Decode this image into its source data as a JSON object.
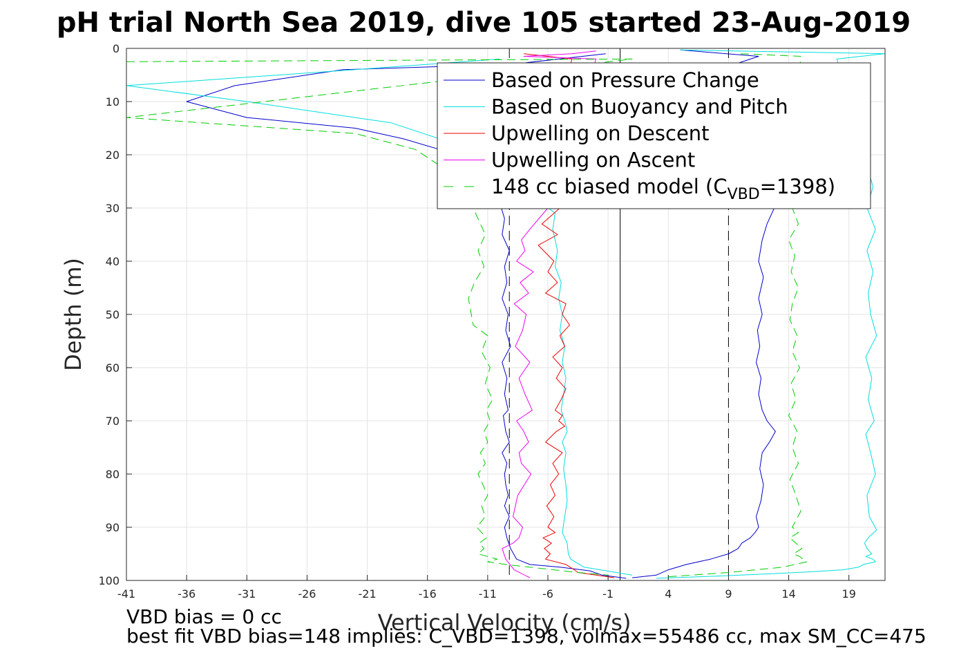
{
  "chart_data": {
    "type": "line",
    "title": "pH trial North Sea 2019, dive 105 started 23-Aug-2019",
    "xlabel": "Vertical Velocity (cm/s)",
    "ylabel": "Depth (m)",
    "xlim": [
      -41,
      22
    ],
    "ylim": [
      0,
      100
    ],
    "y_reversed": true,
    "grid": true,
    "xticks": [
      -41,
      -36,
      -31,
      -26,
      -21,
      -16,
      -11,
      -6,
      -1,
      4,
      9,
      14,
      19
    ],
    "yticks": [
      0,
      10,
      20,
      30,
      40,
      50,
      60,
      70,
      80,
      90,
      100
    ],
    "legend_position": "top-right",
    "reference_lines": [
      {
        "x": -9.2,
        "style": "dashed",
        "color": "#000000"
      },
      {
        "x": 0,
        "style": "solid",
        "color": "#000000"
      },
      {
        "x": 9.0,
        "style": "dashed",
        "color": "#000000"
      }
    ],
    "series": [
      {
        "name": "Based on Pressure Change",
        "color": "#0000cc",
        "style": "solid",
        "descent": {
          "x": [
            -1.2,
            -9,
            -23,
            -32,
            -36,
            -31,
            -22,
            -18,
            -15,
            -13,
            -11,
            -10,
            -9.6,
            -9.8,
            -9.2,
            -9.6,
            -9.4,
            -9.8,
            -9.3,
            -9.5,
            -9.1,
            -9.8,
            -9.4,
            -9.6,
            -9.3,
            -9.7,
            -9.5,
            -9.2,
            -9.8,
            -9.4,
            -9.6,
            -9.5,
            -9.3,
            -9.6,
            -9.2,
            -9.6,
            -9.4,
            -9.1,
            -8.6,
            -7.5,
            -5.0,
            -2.5,
            -1.5,
            0.5
          ],
          "y": [
            1,
            3,
            4,
            7,
            10,
            13,
            15,
            17,
            19,
            22,
            26,
            29,
            32,
            35,
            38,
            41,
            44,
            47,
            50,
            53,
            56,
            59,
            62,
            65,
            68,
            69,
            72,
            74,
            76,
            78,
            80,
            82,
            84,
            86,
            88,
            90,
            92,
            94,
            96,
            97,
            97.5,
            98.2,
            99,
            99.6
          ]
        },
        "ascent": {
          "x": [
            5,
            11.5,
            9.5,
            10.8,
            12.5,
            12.8,
            12.2,
            11.8,
            11.5,
            11.9,
            11.5,
            11.8,
            11.4,
            11.6,
            11.3,
            11.7,
            11.5,
            11.8,
            12.2,
            12.9,
            12.4,
            11.8,
            11.6,
            11.9,
            11.7,
            11.3,
            11.5,
            11.2,
            10.8,
            10.1,
            9.8,
            9.0,
            7.5,
            5.5,
            4.0,
            3.0,
            1.0
          ],
          "y": [
            0.3,
            1.5,
            3,
            20,
            26,
            30,
            33,
            36,
            40,
            43,
            47,
            50,
            53,
            56,
            59,
            62,
            65,
            68,
            70,
            72,
            74,
            76,
            79,
            82,
            85,
            88,
            90,
            91,
            92,
            93,
            94,
            95,
            96,
            97,
            98,
            99,
            99.5
          ]
        }
      },
      {
        "name": "Based on Buoyancy and Pitch",
        "color": "#00dddd",
        "style": "solid",
        "descent": {
          "x": [
            -10,
            -22,
            -41,
            -31,
            -19,
            -15,
            -14,
            -13,
            -12,
            -10,
            -8,
            -6.5,
            -5.4,
            -5.6,
            -5.2,
            -5.4,
            -4.9,
            -5.1,
            -4.8,
            -5.0,
            -4.6,
            -4.8,
            -4.5,
            -4.7,
            -4.9,
            -4.6,
            -4.4,
            -4.8,
            -4.5,
            -4.7,
            -4.5,
            -4.4,
            -4.6,
            -4.8,
            -4.4,
            -4.3,
            -4.1,
            -3.0,
            1.0
          ],
          "y": [
            2,
            4,
            7,
            10,
            14,
            17,
            19,
            21,
            23,
            25,
            27,
            29,
            31,
            34,
            38,
            41,
            44,
            47,
            50,
            53,
            56,
            59,
            62,
            65,
            68,
            70,
            72,
            74,
            76,
            79,
            82,
            85,
            88,
            91,
            93,
            95,
            96,
            97.5,
            99
          ]
        },
        "ascent": {
          "x": [
            5,
            22,
            18,
            21,
            20.5,
            21.2,
            20.5,
            21,
            20.6,
            20.8,
            21.3,
            20.4,
            20.9,
            20.6,
            21.1,
            20.4,
            20.8,
            21.2,
            20.5,
            20.7,
            21.3,
            20.6,
            20.3,
            20.5,
            20.9,
            20.4,
            21.0,
            21.2,
            20.2,
            19.8,
            18.5,
            15.5,
            12.0,
            8.0,
            3.0
          ],
          "y": [
            0.3,
            1,
            2,
            26,
            30,
            34,
            38,
            42,
            46,
            50,
            54,
            58,
            62,
            66,
            70,
            72.5,
            76,
            80,
            84,
            88,
            90.5,
            92,
            93,
            94,
            95,
            95.5,
            96,
            96.5,
            97,
            97.5,
            98,
            98.4,
            98.8,
            99.2,
            99.6
          ]
        }
      },
      {
        "name": "Upwelling on Descent",
        "color": "#ee0000",
        "style": "solid",
        "descent": {
          "x": [
            -8,
            -4,
            -7,
            -5,
            -6.5,
            -5.2,
            -6.8,
            -5.5,
            -6.0,
            -5.2,
            -6.2,
            -4.5,
            -4.8,
            -4.2,
            -5.0,
            -4.6,
            -5.6,
            -4.8,
            -5.3,
            -4.5,
            -4.9,
            -5.4,
            -4.8,
            -5.1,
            -4.6,
            -5.3,
            -6.2,
            -4.8,
            -5.6,
            -5.1,
            -5.8,
            -5.4,
            -6.1,
            -5.5,
            -6.0,
            -5.4,
            -6.4,
            -5.7,
            -6.3,
            -5.8,
            -6.2,
            -4.5,
            -3.8,
            -3.5,
            -2.0,
            -0.5
          ],
          "y": [
            1,
            2,
            26,
            30,
            33,
            35,
            37,
            40,
            42,
            44,
            46,
            48,
            50,
            52,
            54,
            56,
            58,
            60,
            62,
            64,
            66,
            68,
            69,
            70,
            71,
            72,
            74,
            76,
            78,
            80,
            82,
            84,
            86,
            88,
            90,
            91,
            92,
            93,
            94,
            95,
            96,
            97,
            98,
            98.5,
            99,
            99.5
          ]
        }
      },
      {
        "name": "Upwelling on Ascent",
        "color": "#ee00ee",
        "style": "solid",
        "ascent": {
          "x": [
            -2,
            -4,
            -8,
            -2,
            -6,
            -7.5,
            -8.2,
            -7.9,
            -8.6,
            -7.2,
            -8.3,
            -7.6,
            -8.8,
            -7.8,
            -8.1,
            -8.7,
            -7.5,
            -8.4,
            -7.9,
            -7.3,
            -8.6,
            -8.0,
            -7.6,
            -8.4,
            -8.2,
            -7.4,
            -8.5,
            -8.9,
            -8.1,
            -8.4,
            -8.9,
            -9.8,
            -9.5,
            -8.8,
            -7.5
          ],
          "y": [
            0.5,
            1,
            1.5,
            2,
            30,
            34,
            36,
            38,
            40,
            42,
            44,
            46,
            48,
            50,
            53,
            56,
            59,
            62,
            65,
            68,
            70,
            72,
            74,
            76,
            78,
            80,
            84,
            88,
            90,
            92,
            93,
            94,
            96,
            98,
            99.5
          ]
        }
      },
      {
        "name": "148 cc biased model (C_VBD=1398)",
        "color": "#00cc00",
        "style": "dashed",
        "descent": {
          "x": [
            -41,
            1,
            -41,
            -22,
            -17,
            -15,
            -13,
            -11.5,
            -12,
            -11.2,
            -11.8,
            -11.3,
            -12.1,
            -12.6,
            -12.2,
            -11.0,
            -11.5,
            -10.8,
            -11.2,
            -10.6,
            -11.1,
            -10.8,
            -11.3,
            -11.0,
            -11.6,
            -11.2,
            -11.8,
            -11.4,
            -11.0,
            -11.5,
            -11.2,
            -11.9,
            -11.5,
            -11.1,
            -11.7,
            -11.3,
            -11.8,
            -10.2,
            -11.0,
            -9.5,
            -7.5,
            -5.5,
            -3.5,
            -1.0
          ],
          "y": [
            2.5,
            2,
            13,
            16,
            19,
            22,
            25,
            28,
            31,
            35,
            38,
            41,
            44,
            47,
            52,
            54,
            57,
            60,
            63,
            66,
            68,
            70,
            72,
            74,
            76,
            78,
            80,
            82,
            84,
            86,
            88,
            90,
            91,
            92,
            93,
            94,
            95,
            96,
            96.5,
            97,
            97.5,
            98,
            98.5,
            99
          ]
        },
        "ascent": {
          "x": [
            10,
            15,
            14.3,
            14.8,
            14.0,
            14.5,
            14.2,
            14.8,
            14.3,
            14.1,
            14.7,
            14.3,
            14.9,
            14.2,
            14.6,
            14.0,
            14.7,
            14.3,
            14.8,
            14.1,
            14.6,
            15.0,
            14.3,
            14.8,
            14.1,
            14.6,
            15.1,
            14.4,
            14.9,
            15.2,
            15.5,
            13.5,
            9.0,
            4.0
          ],
          "y": [
            1,
            1.5,
            30,
            33,
            36,
            39,
            42,
            45,
            48,
            51,
            54,
            57,
            60,
            63,
            66,
            69,
            72,
            75,
            78,
            81,
            84,
            87,
            90,
            91,
            92,
            93,
            94,
            95,
            95.5,
            96,
            96.5,
            97.5,
            98.5,
            99.3
          ]
        }
      }
    ],
    "legend": {
      "entries": [
        {
          "label": "Based on Pressure Change",
          "color": "#0000cc",
          "style": "solid"
        },
        {
          "label": "Based on Buoyancy and Pitch",
          "color": "#00dddd",
          "style": "solid"
        },
        {
          "label": "Upwelling on Descent",
          "color": "#ee0000",
          "style": "solid"
        },
        {
          "label": "Upwelling on Ascent",
          "color": "#ee00ee",
          "style": "solid"
        },
        {
          "label_prefix": "148 cc biased model (C",
          "label_sub": "VBD",
          "label_suffix": "=1398)",
          "color": "#00cc00",
          "style": "dashed"
        }
      ]
    },
    "annotations": [
      "VBD bias = 0 cc",
      "best fit VBD bias=148 implies: C_VBD=1398, volmax=55486 cc, max SM_CC=475"
    ]
  }
}
